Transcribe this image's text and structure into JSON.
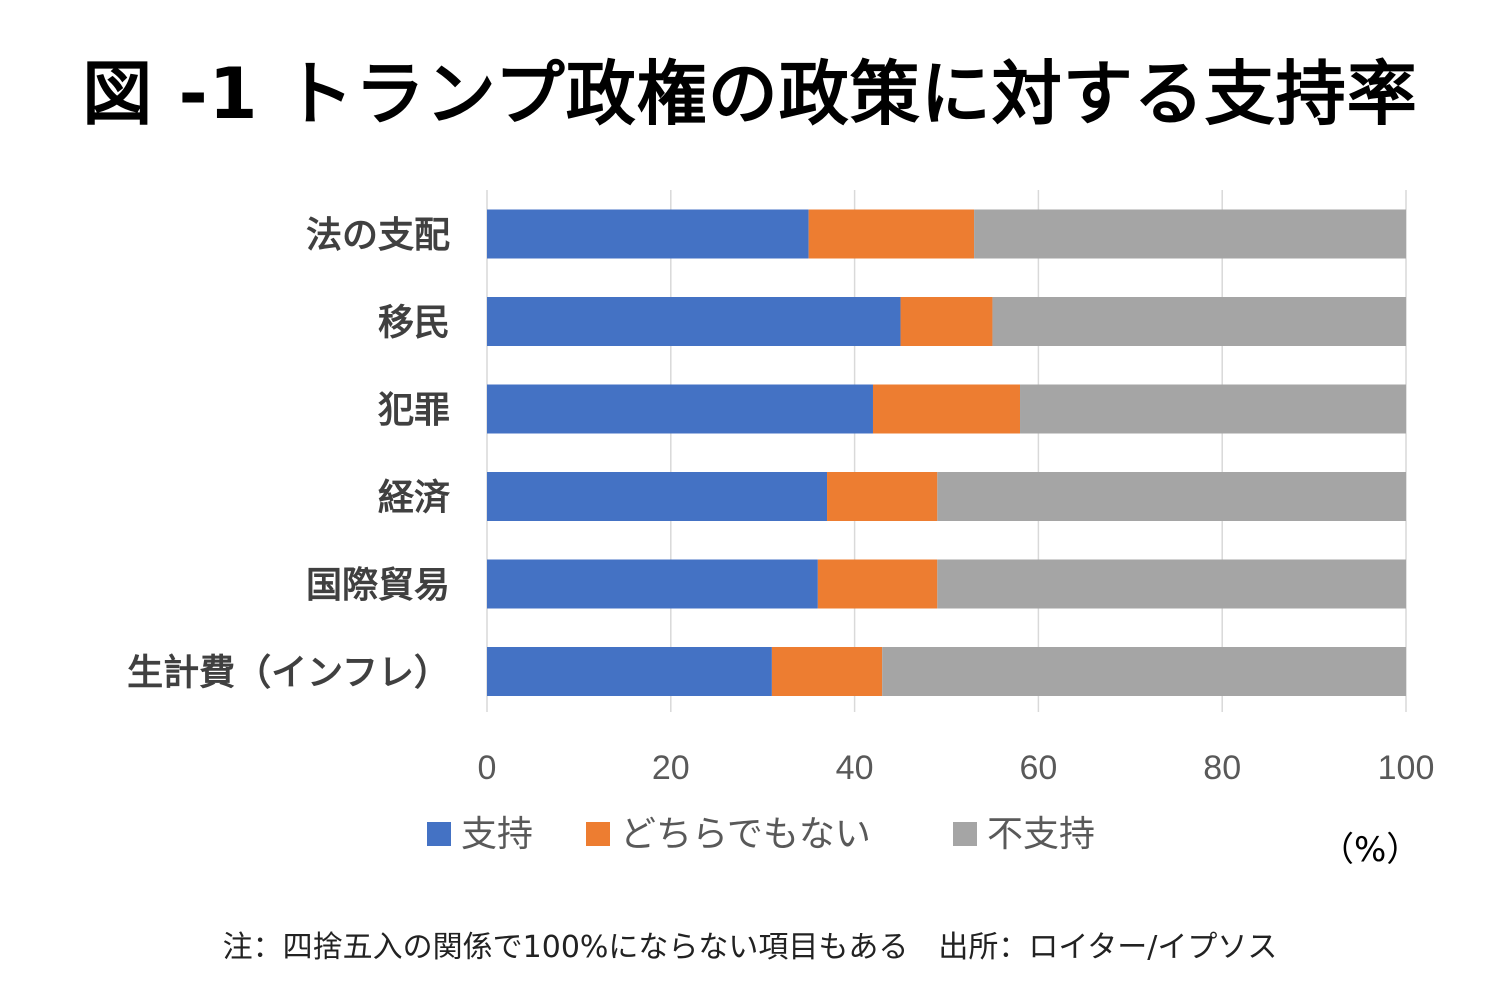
{
  "title": "図 -1 トランプ政権の政策に対する支持率",
  "unit_label": "（%）",
  "note": "注：四捨五入の関係で100%にならない項目もある　出所：ロイター/イプソス",
  "chart_data": {
    "type": "bar",
    "orientation": "horizontal",
    "stacked": true,
    "title": "",
    "xlabel": "（%）",
    "ylabel": "",
    "xlim": [
      0,
      100
    ],
    "xticks": [
      "0",
      "20",
      "40",
      "60",
      "80",
      "100"
    ],
    "grid": true,
    "legend_position": "bottom",
    "categories": [
      "法の支配",
      "移民",
      "犯罪",
      "経済",
      "国際貿易",
      "生計費（インフレ）"
    ],
    "series": [
      {
        "name": "支持",
        "color": "#4472c4",
        "values": [
          35,
          45,
          42,
          37,
          36,
          31
        ]
      },
      {
        "name": "どちらでもない",
        "color": "#ed7d31",
        "values": [
          18,
          10,
          16,
          12,
          13,
          12
        ]
      },
      {
        "name": "不支持",
        "color": "#a5a5a5",
        "values": [
          47,
          45,
          42,
          51,
          51,
          57
        ]
      }
    ]
  }
}
